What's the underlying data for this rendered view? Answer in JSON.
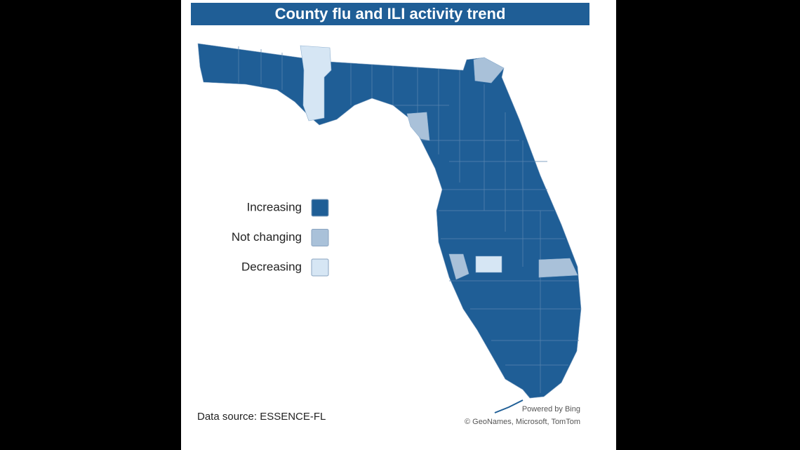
{
  "title": "County flu and ILI activity trend",
  "legend": {
    "items": [
      {
        "label": "Increasing",
        "color": "#1f5e96"
      },
      {
        "label": "Not changing",
        "color": "#a9c1d9"
      },
      {
        "label": "Decreasing",
        "color": "#d6e6f4"
      }
    ]
  },
  "source": "Data source: ESSENCE-FL",
  "attribution": [
    "Powered by Bing",
    "© GeoNames, Microsoft, TomTom"
  ]
}
